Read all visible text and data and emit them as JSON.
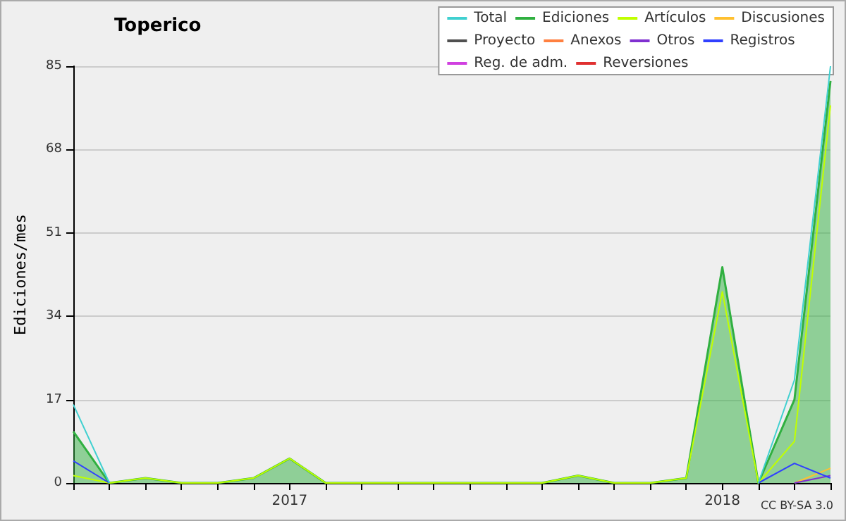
{
  "chart_data": {
    "type": "line",
    "title": "Toperico",
    "ylabel": "Ediciones/mes",
    "categories": [
      null,
      null,
      null,
      null,
      null,
      null,
      "2017",
      null,
      null,
      null,
      null,
      null,
      null,
      null,
      null,
      null,
      null,
      null,
      "2018",
      null,
      null,
      null
    ],
    "series": [
      {
        "name": "Total",
        "color": "#40d0d0",
        "values": [
          16,
          0,
          null,
          null,
          null,
          null,
          null,
          null,
          null,
          null,
          null,
          null,
          null,
          null,
          null,
          null,
          null,
          null,
          null,
          0,
          21,
          85
        ]
      },
      {
        "name": "Ediciones",
        "type": "area",
        "color": "#30b040",
        "values": [
          10.5,
          0,
          1,
          0,
          0,
          1,
          5,
          0,
          0,
          0,
          0,
          0,
          0,
          0,
          1.5,
          0,
          0,
          1,
          44,
          0,
          17,
          82
        ]
      },
      {
        "name": "Artículos",
        "color": "#c0ff00",
        "values": [
          1.5,
          0,
          1,
          0,
          0,
          1,
          5,
          0,
          0,
          0,
          0,
          0,
          0,
          0,
          1.5,
          0,
          0,
          1,
          39,
          0,
          8.5,
          77
        ]
      },
      {
        "name": "Discusiones",
        "color": "#ffc030",
        "values": [
          null,
          null,
          null,
          null,
          null,
          null,
          null,
          null,
          null,
          null,
          null,
          null,
          null,
          null,
          null,
          null,
          null,
          null,
          null,
          null,
          0,
          3
        ]
      },
      {
        "name": "Proyecto",
        "color": "#505050",
        "values": [
          null,
          null,
          null,
          null,
          null,
          null,
          null,
          null,
          null,
          null,
          null,
          null,
          null,
          null,
          null,
          null,
          null,
          null,
          null,
          null,
          null,
          null
        ]
      },
      {
        "name": "Anexos",
        "color": "#ff8040",
        "values": [
          null,
          null,
          null,
          null,
          null,
          null,
          null,
          null,
          null,
          null,
          null,
          null,
          null,
          null,
          null,
          null,
          null,
          null,
          null,
          null,
          null,
          null
        ]
      },
      {
        "name": "Otros",
        "color": "#8030d0",
        "values": [
          null,
          null,
          null,
          null,
          null,
          null,
          null,
          null,
          null,
          null,
          null,
          null,
          null,
          null,
          null,
          null,
          null,
          null,
          null,
          null,
          0,
          1.5
        ]
      },
      {
        "name": "Registros",
        "color": "#3040ff",
        "values": [
          4.5,
          0,
          null,
          null,
          null,
          null,
          null,
          null,
          null,
          null,
          null,
          null,
          null,
          null,
          null,
          null,
          null,
          null,
          null,
          0,
          4,
          1
        ]
      },
      {
        "name": "Reg. de adm.",
        "color": "#d040e0",
        "values": [
          null,
          null,
          null,
          null,
          null,
          null,
          null,
          null,
          null,
          null,
          null,
          null,
          null,
          null,
          null,
          null,
          null,
          null,
          null,
          null,
          null,
          null
        ]
      },
      {
        "name": "Reversiones",
        "color": "#e03030",
        "values": [
          null,
          null,
          null,
          null,
          null,
          null,
          null,
          null,
          null,
          null,
          null,
          null,
          null,
          null,
          null,
          null,
          null,
          null,
          null,
          null,
          null,
          null
        ]
      }
    ],
    "ylim": [
      0,
      85
    ],
    "yticks": [
      0,
      17,
      34,
      51,
      68,
      85
    ],
    "grid": "y",
    "legend": "top right",
    "annotations": [
      "CC BY-SA 3.0"
    ]
  }
}
